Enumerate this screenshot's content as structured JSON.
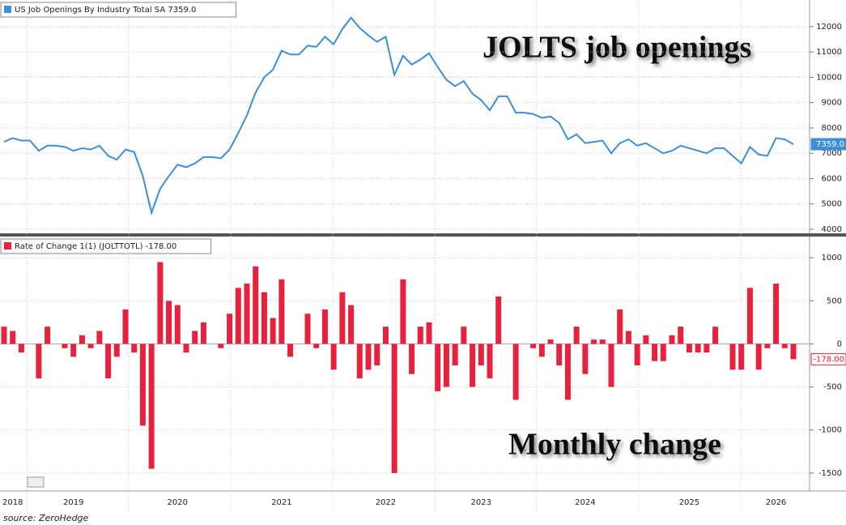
{
  "chart_data": [
    {
      "type": "line",
      "annotation": "JOLTS job openings",
      "ylim": [
        3840,
        13050
      ],
      "yticks": [
        4000,
        5000,
        6000,
        7000,
        8000,
        9000,
        10000,
        11000,
        12000
      ],
      "grid": true,
      "series": [
        {
          "name": "US Job Openings By Industry Total SA 7359.0",
          "color": "#3d8fd6",
          "values": [
            7450,
            7600,
            7500,
            7500,
            7100,
            7300,
            7300,
            7250,
            7100,
            7200,
            7150,
            7300,
            6900,
            6750,
            7150,
            7050,
            6100,
            4650,
            5600,
            6100,
            6550,
            6450,
            6600,
            6850,
            6850,
            6800,
            7150,
            7800,
            8500,
            9400,
            10000,
            10300,
            11050,
            10900,
            10900,
            11250,
            11200,
            11600,
            11300,
            11900,
            12350,
            11950,
            11650,
            11400,
            11600,
            10100,
            10850,
            10500,
            10700,
            10950,
            10400,
            9900,
            9650,
            9850,
            9350,
            9100,
            8700,
            9250,
            9250,
            8600,
            8600,
            8550,
            8400,
            8450,
            8200,
            7550,
            7750,
            7400,
            7450,
            7500,
            7000,
            7400,
            7550,
            7300,
            7400,
            7200,
            7000,
            7100,
            7300,
            7200,
            7100,
            7000,
            7200,
            7200,
            6900,
            6600,
            7250,
            6950,
            6900,
            7600,
            7550,
            7359
          ],
          "value_labels": [
            null,
            null,
            null,
            null,
            null,
            null,
            null,
            null,
            null,
            null,
            null,
            null,
            null,
            null,
            null,
            null,
            null,
            null,
            null,
            null,
            null,
            null,
            null,
            null,
            null,
            null,
            null,
            null,
            null,
            null,
            null,
            null,
            null,
            null,
            null,
            null,
            null,
            null,
            null,
            null,
            null,
            null,
            null,
            null,
            null,
            null,
            null,
            null,
            null,
            null,
            null,
            null,
            null,
            null,
            null,
            null,
            null,
            null,
            null,
            null,
            null,
            null,
            null,
            null,
            null,
            null,
            null,
            null,
            null,
            null,
            null,
            null,
            null,
            null,
            null,
            null,
            null,
            null,
            null,
            null,
            null,
            null,
            null,
            null,
            null,
            null,
            null,
            null,
            null,
            null,
            null,
            "7359.0"
          ]
        }
      ]
    },
    {
      "type": "bar",
      "annotation": "Monthly change",
      "source": "source: ZeroHedge",
      "ylim": [
        -1708,
        1246
      ],
      "yticks": [
        -1500,
        -1000,
        -500,
        0,
        500,
        1000
      ],
      "grid": true,
      "categories": [
        null,
        "2018",
        null,
        null,
        null,
        null,
        null,
        null,
        "2019",
        null,
        null,
        null,
        null,
        null,
        null,
        null,
        null,
        null,
        null,
        null,
        "2020",
        null,
        null,
        null,
        null,
        null,
        null,
        null,
        null,
        null,
        null,
        null,
        "2021",
        null,
        null,
        null,
        null,
        null,
        null,
        null,
        null,
        null,
        null,
        null,
        "2022",
        null,
        null,
        null,
        null,
        null,
        null,
        null,
        null,
        null,
        null,
        "2023",
        null,
        null,
        null,
        null,
        null,
        null,
        null,
        null,
        null,
        null,
        null,
        "2024",
        null,
        null,
        null,
        null,
        null,
        null,
        null,
        null,
        null,
        null,
        null,
        "2025",
        null,
        null,
        null,
        null,
        null,
        null,
        null,
        null,
        null,
        "2026",
        null,
        null
      ],
      "series": [
        {
          "name": "Rate of Change 1(1) (JOLTTOTL) -178.00",
          "color": "#e8213c",
          "values": [
            200,
            150,
            -100,
            0,
            -400,
            200,
            0,
            -50,
            -150,
            100,
            -50,
            150,
            -400,
            -150,
            400,
            -100,
            -950,
            -1450,
            950,
            500,
            450,
            -100,
            150,
            250,
            0,
            -50,
            350,
            650,
            700,
            900,
            600,
            300,
            750,
            -150,
            0,
            350,
            -50,
            400,
            -300,
            600,
            450,
            -400,
            -300,
            -250,
            200,
            -1500,
            750,
            -350,
            200,
            250,
            -550,
            -500,
            -250,
            200,
            -500,
            -250,
            -400,
            550,
            0,
            -650,
            0,
            -50,
            -150,
            50,
            -250,
            -650,
            200,
            -350,
            50,
            50,
            -500,
            400,
            150,
            -250,
            100,
            -200,
            -200,
            100,
            200,
            -100,
            -100,
            -100,
            200,
            0,
            -300,
            -300,
            650,
            -300,
            -50,
            700,
            -50,
            -178
          ],
          "value_labels": [
            null,
            null,
            null,
            null,
            null,
            null,
            null,
            null,
            null,
            null,
            null,
            null,
            null,
            null,
            null,
            null,
            null,
            null,
            null,
            null,
            null,
            null,
            null,
            null,
            null,
            null,
            null,
            null,
            null,
            null,
            null,
            null,
            null,
            null,
            null,
            null,
            null,
            null,
            null,
            null,
            null,
            null,
            null,
            null,
            null,
            null,
            null,
            null,
            null,
            null,
            null,
            null,
            null,
            null,
            null,
            null,
            null,
            null,
            null,
            null,
            null,
            null,
            null,
            null,
            null,
            null,
            null,
            null,
            null,
            null,
            null,
            null,
            null,
            null,
            null,
            null,
            null,
            null,
            null,
            null,
            null,
            null,
            null,
            null,
            null,
            null,
            null,
            null,
            null,
            null,
            null,
            "-178.00"
          ]
        }
      ]
    }
  ]
}
